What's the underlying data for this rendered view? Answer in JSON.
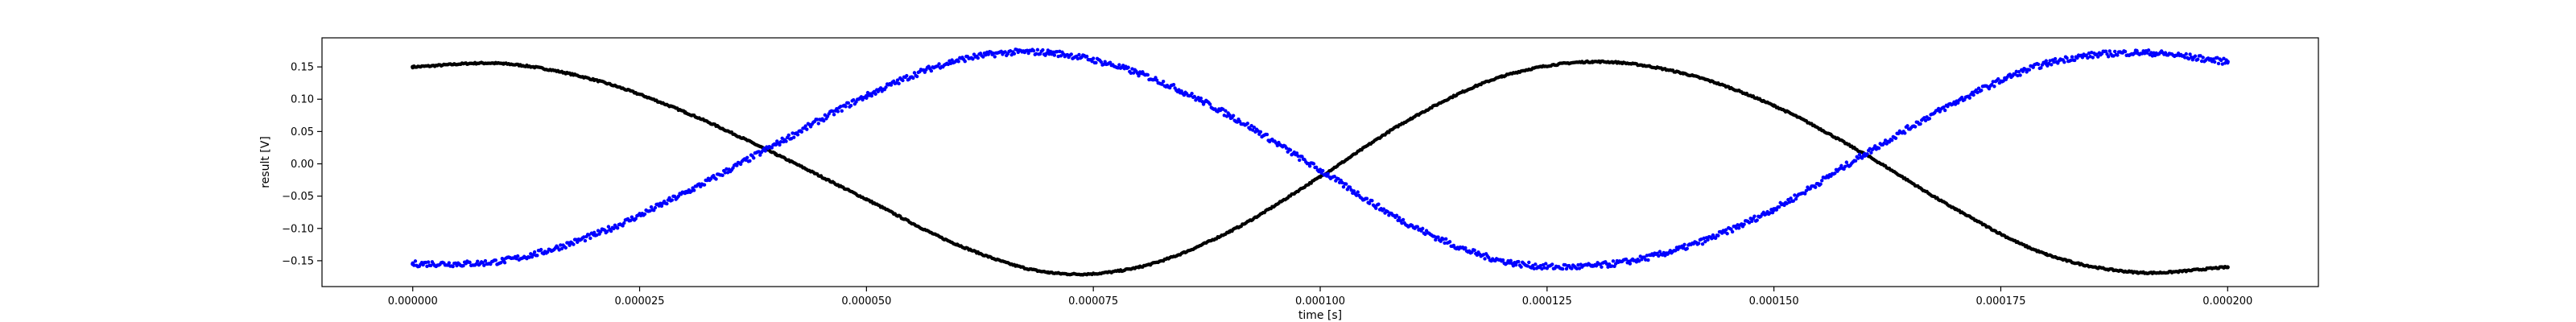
{
  "chart_data": {
    "type": "scatter",
    "title": "",
    "xlabel": "time [s]",
    "ylabel": "result [V]",
    "xlim": [
      -1e-05,
      0.00021
    ],
    "ylim": [
      -0.19,
      0.195
    ],
    "x_ticks": [
      0.0,
      2.5e-05,
      5e-05,
      7.5e-05,
      0.0001,
      0.000125,
      0.00015,
      0.000175,
      0.0002
    ],
    "x_tick_labels": [
      "0.000000",
      "0.000025",
      "0.000050",
      "0.000075",
      "0.000100",
      "0.000125",
      "0.000150",
      "0.000175",
      "0.000200"
    ],
    "y_ticks": [
      -0.15,
      -0.1,
      -0.05,
      0.0,
      0.05,
      0.1,
      0.15
    ],
    "y_tick_labels": [
      "−0.15",
      "−0.10",
      "−0.05",
      "0.00",
      "0.05",
      "0.10",
      "0.15"
    ],
    "grid": false,
    "legend": "none",
    "series": [
      {
        "color": "#000000",
        "marker": "dot",
        "x": [
          0.0,
          1e-05,
          2e-05,
          3e-05,
          4e-05,
          5e-05,
          6e-05,
          7e-05,
          8e-05,
          9e-05,
          0.0001,
          0.00011,
          0.00012,
          0.00013,
          0.00014,
          0.00015,
          0.00016,
          0.00017,
          0.00018,
          0.00019,
          0.0002
        ],
        "y": [
          0.15,
          0.155,
          0.13,
          0.08,
          0.015,
          -0.055,
          -0.125,
          -0.168,
          -0.16,
          -0.105,
          -0.02,
          0.07,
          0.135,
          0.158,
          0.14,
          0.09,
          0.015,
          -0.07,
          -0.14,
          -0.168,
          -0.16
        ]
      },
      {
        "color": "#0000ff",
        "marker": "dot",
        "x": [
          0.0,
          1e-05,
          2e-05,
          3e-05,
          4e-05,
          5e-05,
          6e-05,
          7e-05,
          8e-05,
          9e-05,
          0.0001,
          0.00011,
          0.00012,
          0.00013,
          0.00014,
          0.00015,
          0.00016,
          0.00017,
          0.00018,
          0.00019,
          0.0002
        ],
        "y": [
          -0.155,
          -0.15,
          -0.11,
          -0.045,
          0.03,
          0.105,
          0.16,
          0.172,
          0.14,
          0.075,
          -0.01,
          -0.095,
          -0.15,
          -0.158,
          -0.13,
          -0.07,
          0.015,
          0.095,
          0.155,
          0.172,
          0.158
        ]
      }
    ]
  }
}
